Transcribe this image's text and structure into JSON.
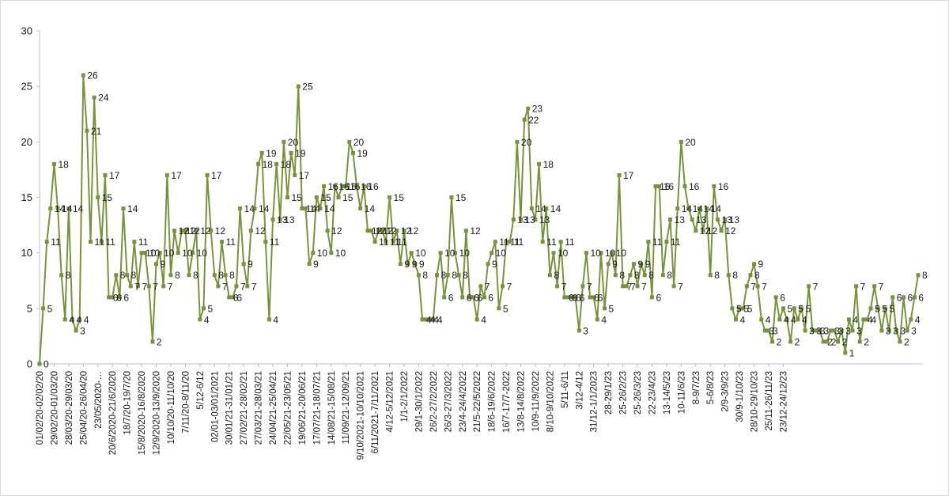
{
  "chart_data": {
    "type": "line",
    "title": "",
    "xlabel": "",
    "ylabel": "",
    "ylim": [
      0,
      30
    ],
    "yticks": [
      0,
      5,
      10,
      15,
      20,
      25,
      30
    ],
    "grid": false,
    "legend": "none",
    "series_color": "#77933c",
    "axis_color": "#bfbfbf",
    "x_tick_labels": [
      {
        "i": 0,
        "label": "01/02/20-02/02/20"
      },
      {
        "i": 4,
        "label": "29/02/20-01/03/20"
      },
      {
        "i": 8,
        "label": "28/03/20-29/03/20"
      },
      {
        "i": 12,
        "label": "25/04/20-26/04/20"
      },
      {
        "i": 16,
        "label": "23/05/2020-…"
      },
      {
        "i": 20,
        "label": "20/6/2020-21/6/2020"
      },
      {
        "i": 24,
        "label": "18/7/20-19/7/20"
      },
      {
        "i": 28,
        "label": "15/8/2020-16/8/2020"
      },
      {
        "i": 32,
        "label": "12/9/2020-13/9/2020"
      },
      {
        "i": 36,
        "label": "10/10/20-11/10/20"
      },
      {
        "i": 40,
        "label": "7/11/20-8/11/20"
      },
      {
        "i": 44,
        "label": "5/12-6/12"
      },
      {
        "i": 48,
        "label": "02/01-03/01/2021"
      },
      {
        "i": 52,
        "label": "30/01/21-31/01/21"
      },
      {
        "i": 56,
        "label": "27/02/21-28/02/21"
      },
      {
        "i": 60,
        "label": "27/03/21-28/03/21"
      },
      {
        "i": 64,
        "label": "24/04/21-25/04/21"
      },
      {
        "i": 68,
        "label": "22/05/21-23/05/21"
      },
      {
        "i": 72,
        "label": "19/06/21-20/06/21"
      },
      {
        "i": 76,
        "label": "17/07/21-18/07/21"
      },
      {
        "i": 80,
        "label": "14/08/21-15/08/21"
      },
      {
        "i": 84,
        "label": "11/09/21-12/09/21"
      },
      {
        "i": 88,
        "label": "9/10/2021-10/10/2021"
      },
      {
        "i": 92,
        "label": "6/11/2021-7/11/2021"
      },
      {
        "i": 96,
        "label": "4/12-5/12/2021"
      },
      {
        "i": 100,
        "label": "1/1-2/1/2022"
      },
      {
        "i": 104,
        "label": "29/1-30/1/2022"
      },
      {
        "i": 108,
        "label": "26/2-27/2/2022"
      },
      {
        "i": 112,
        "label": "26/3-27/3/2022"
      },
      {
        "i": 116,
        "label": "23/4-24/4/2022"
      },
      {
        "i": 120,
        "label": "21/5-22/5/2022"
      },
      {
        "i": 124,
        "label": "18/6-19/6/2022"
      },
      {
        "i": 128,
        "label": "16/7-17/7-2022"
      },
      {
        "i": 132,
        "label": "13/8-14/8/2022"
      },
      {
        "i": 136,
        "label": "10/9-11/9/2022"
      },
      {
        "i": 140,
        "label": "8/10-9/10/2022"
      },
      {
        "i": 144,
        "label": "5/11-6/11"
      },
      {
        "i": 148,
        "label": "3/12-4/12"
      },
      {
        "i": 152,
        "label": "31/12-1/1/2023"
      },
      {
        "i": 156,
        "label": "28-29/1/23"
      },
      {
        "i": 160,
        "label": "25-26/2/23"
      },
      {
        "i": 164,
        "label": "25-26/3/23"
      },
      {
        "i": 168,
        "label": "22-23/4/23"
      },
      {
        "i": 172,
        "label": "13-14/5/23"
      },
      {
        "i": 176,
        "label": "10-11/6/23"
      },
      {
        "i": 180,
        "label": "8-9/7/23"
      },
      {
        "i": 184,
        "label": "5-6/8/23"
      },
      {
        "i": 188,
        "label": "2/9-3/9/23"
      },
      {
        "i": 192,
        "label": "30/9-1/10/23"
      },
      {
        "i": 196,
        "label": "28/10-29/10/23"
      },
      {
        "i": 200,
        "label": "25/11-26/11/23"
      },
      {
        "i": 204,
        "label": "23/12-24/12/23"
      }
    ],
    "series": [
      {
        "values": [
          0,
          5,
          11,
          14,
          18,
          14,
          8,
          4,
          14,
          4,
          3,
          4,
          26,
          21,
          11,
          24,
          15,
          11,
          17,
          6,
          6,
          8,
          6,
          14,
          8,
          7,
          11,
          7,
          10,
          10,
          7,
          2,
          9,
          10,
          7,
          17,
          8,
          12,
          10,
          12,
          12,
          8,
          10,
          12,
          4,
          5,
          17,
          12,
          8,
          7,
          11,
          8,
          6,
          6,
          7,
          14,
          9,
          7,
          12,
          14,
          18,
          19,
          11,
          4,
          13,
          18,
          13,
          20,
          15,
          19,
          17,
          25,
          14,
          14,
          9,
          10,
          15,
          14,
          16,
          12,
          10,
          16,
          15,
          16,
          16,
          20,
          19,
          16,
          14,
          16,
          12,
          12,
          11,
          12,
          12,
          11,
          15,
          11,
          12,
          9,
          12,
          9,
          10,
          9,
          8,
          4,
          4,
          4,
          4,
          8,
          10,
          6,
          8,
          15,
          10,
          8,
          6,
          12,
          6,
          6,
          4,
          7,
          6,
          9,
          10,
          11,
          5,
          7,
          11,
          11,
          13,
          20,
          13,
          22,
          23,
          14,
          13,
          18,
          11,
          14,
          8,
          10,
          7,
          11,
          6,
          6,
          6,
          6,
          3,
          7,
          10,
          6,
          6,
          4,
          10,
          5,
          9,
          10,
          8,
          17,
          7,
          7,
          8,
          9,
          7,
          9,
          8,
          11,
          6,
          16,
          16,
          8,
          11,
          13,
          7,
          14,
          20,
          16,
          14,
          13,
          12,
          14,
          12,
          14,
          8,
          16,
          13,
          12,
          13,
          8,
          5,
          4,
          5,
          5,
          7,
          8,
          9,
          7,
          4,
          3,
          3,
          2,
          6,
          4,
          5,
          4,
          2,
          5,
          4,
          5,
          3,
          7,
          3,
          3,
          3,
          2,
          2,
          3,
          3,
          2,
          3,
          1,
          4,
          3,
          7,
          2,
          4,
          4,
          5,
          7,
          5,
          3,
          5,
          3,
          6,
          3,
          2,
          6,
          3,
          4,
          6,
          8
        ]
      }
    ]
  }
}
